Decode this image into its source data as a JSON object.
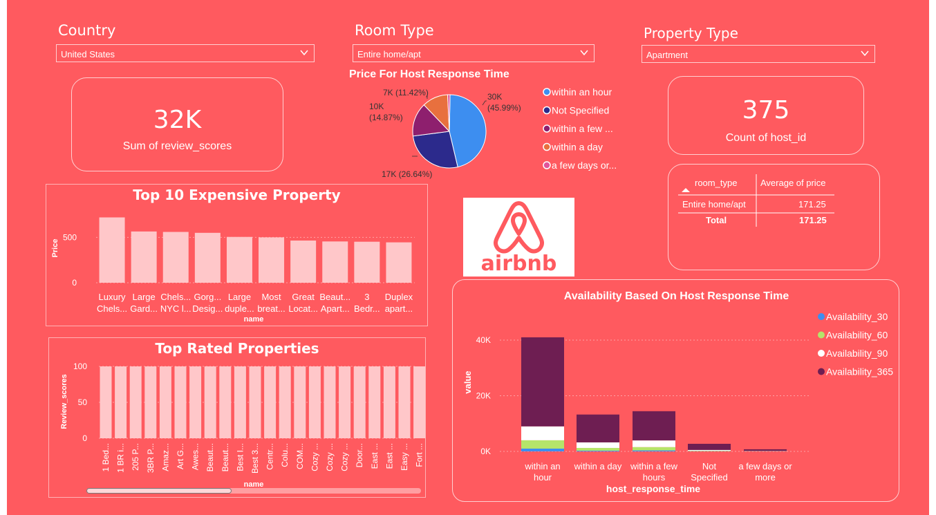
{
  "slicers": {
    "country": {
      "title": "Country",
      "value": "United States"
    },
    "room_type": {
      "title": "Room Type",
      "value": "Entire home/apt"
    },
    "property_type": {
      "title": "Property Type",
      "value": "Apartment"
    }
  },
  "kpis": {
    "review_scores": {
      "value": "32K",
      "label": "Sum of review_scores"
    },
    "host_count": {
      "value": "375",
      "label": "Count of host_id"
    }
  },
  "logo": {
    "text": "airbnb"
  },
  "price_table": {
    "headers": [
      "room_type",
      "Average of price"
    ],
    "rows": [
      {
        "room_type": "Entire home/apt",
        "price": "171.25"
      }
    ],
    "total": {
      "label": "Total",
      "price": "171.25"
    }
  },
  "chart_data": [
    {
      "type": "pie",
      "title": "Price For Host Response Time",
      "slices": [
        {
          "name": "within an hour",
          "value": 30,
          "label": "30K",
          "pct": "(45.99%)",
          "color": "#3d8ef0"
        },
        {
          "name": "Not Specified",
          "value": 17,
          "label": "17K (26.64%)",
          "pct": "",
          "color": "#2c2a8c"
        },
        {
          "name": "within a few ...",
          "value": 10,
          "label": "10K",
          "pct": "(14.87%)",
          "color": "#8e1f6e"
        },
        {
          "name": "within a day",
          "value": 7,
          "label": "7K (11.42%)",
          "pct": "",
          "color": "#e8703e"
        },
        {
          "name": "a few days or...",
          "value": 0.7,
          "label": "",
          "pct": "",
          "color": "#e0559a"
        }
      ],
      "percentages": [
        45.99,
        26.64,
        14.87,
        11.42,
        1.08
      ]
    },
    {
      "type": "bar",
      "title": "Top 10 Expensive Property",
      "xlabel": "name",
      "ylabel": "Price",
      "yticks": [
        "500",
        "0"
      ],
      "ylim": [
        0,
        800
      ],
      "categories": [
        [
          "Luxury",
          "Chels..."
        ],
        [
          "Large",
          "Gard..."
        ],
        [
          "Chels...",
          "NYC l..."
        ],
        [
          "Gorg...",
          "Desig..."
        ],
        [
          "Large",
          "duple..."
        ],
        [
          "Most",
          "breat..."
        ],
        [
          "Great",
          "Locat..."
        ],
        [
          "Beaut...",
          "Apart..."
        ],
        [
          "3",
          "Bedr..."
        ],
        [
          "Duplex",
          "apart..."
        ]
      ],
      "values": [
        720,
        565,
        560,
        550,
        505,
        500,
        465,
        455,
        452,
        445
      ]
    },
    {
      "type": "bar",
      "title": "Top Rated Properties",
      "xlabel": "name",
      "ylabel": "Review_scores",
      "yticks": [
        "100",
        "50",
        "0"
      ],
      "ylim": [
        0,
        100
      ],
      "categories": [
        "1 Bed...",
        "1 BR i...",
        "205 P...",
        "3BR P...",
        "Amaz...",
        "Art G...",
        "Awes...",
        "Beaut...",
        "Beaut...",
        "Best I...",
        "Best 3...",
        "Centr...",
        "Colu...",
        "COM...",
        "Cozy ...",
        "Cozy ...",
        "Cozy ...",
        "Door...",
        "East ...",
        "East ...",
        "Easy ...",
        "Fort ..."
      ],
      "values": [
        100,
        100,
        100,
        100,
        100,
        100,
        100,
        100,
        100,
        100,
        100,
        100,
        100,
        100,
        100,
        100,
        100,
        100,
        100,
        100,
        100,
        100
      ]
    },
    {
      "type": "bar",
      "stacked": true,
      "title": "Availability Based On Host Response Time",
      "xlabel": "host_response_time",
      "ylabel": "value",
      "yticks": [
        "40K",
        "20K",
        "0K"
      ],
      "ylim": [
        0,
        45000
      ],
      "legend_position": "right",
      "categories": [
        [
          "within an",
          "hour"
        ],
        [
          "within a day"
        ],
        [
          "within a few",
          "hours"
        ],
        [
          "Not",
          "Specified"
        ],
        [
          "a few days or",
          "more"
        ]
      ],
      "series": [
        {
          "name": "Availability_30",
          "color": "#3d8ef0",
          "values": [
            1000,
            250,
            350,
            80,
            20
          ]
        },
        {
          "name": "Availability_60",
          "color": "#b5e46a",
          "values": [
            3000,
            1000,
            1200,
            150,
            50
          ]
        },
        {
          "name": "Availability_90",
          "color": "#ffffff",
          "values": [
            5000,
            2000,
            2400,
            300,
            80
          ]
        },
        {
          "name": "Availability_365",
          "color": "#6e1e52",
          "values": [
            32000,
            10000,
            10500,
            2200,
            600
          ]
        }
      ]
    }
  ]
}
